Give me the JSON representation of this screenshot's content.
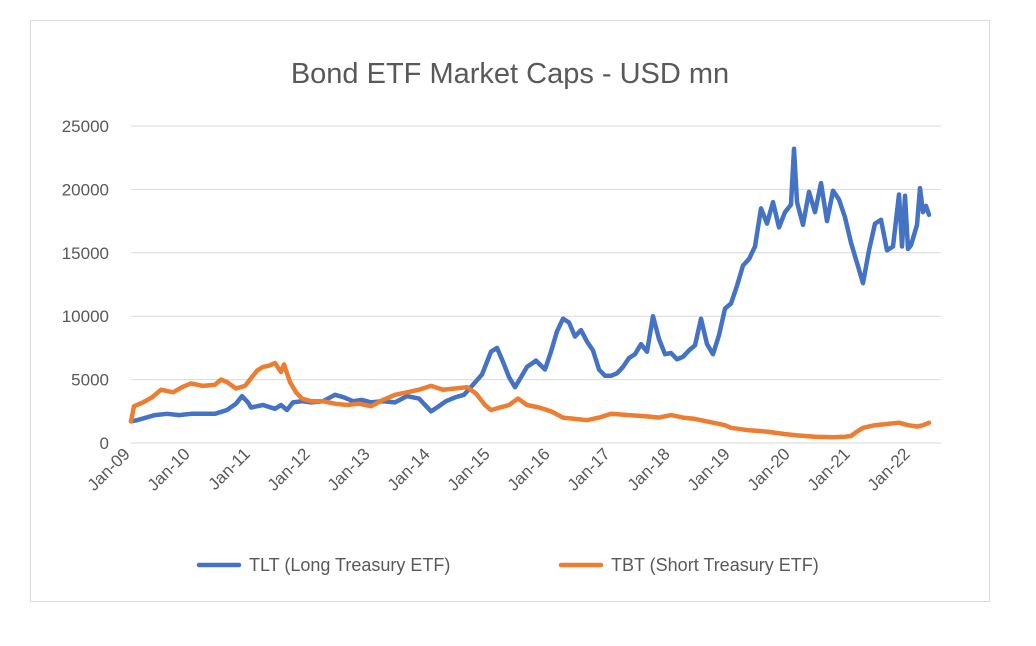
{
  "chart_data": {
    "type": "line",
    "title": "Bond ETF Market Caps - USD mn",
    "xlabel": "",
    "ylabel": "",
    "ylim": [
      0,
      25000
    ],
    "y_ticks": [
      0,
      5000,
      10000,
      15000,
      20000,
      25000
    ],
    "x_tick_labels": [
      "Jan-09",
      "Jan-10",
      "Jan-11",
      "Jan-12",
      "Jan-13",
      "Jan-14",
      "Jan-15",
      "Jan-16",
      "Jan-17",
      "Jan-18",
      "Jan-19",
      "Jan-20",
      "Jan-21",
      "Jan-22"
    ],
    "x_unit": "year (decimal)",
    "xlim": [
      2009.0,
      2022.5
    ],
    "grid": "horizontal",
    "legend_position": "bottom",
    "series": [
      {
        "name": "TLT (Long Treasury ETF)",
        "color": "#4472C4",
        "points": [
          [
            2009.0,
            1700
          ],
          [
            2009.1,
            1800
          ],
          [
            2009.25,
            2000
          ],
          [
            2009.4,
            2200
          ],
          [
            2009.6,
            2300
          ],
          [
            2009.8,
            2200
          ],
          [
            2010.0,
            2300
          ],
          [
            2010.2,
            2300
          ],
          [
            2010.4,
            2300
          ],
          [
            2010.6,
            2600
          ],
          [
            2010.75,
            3100
          ],
          [
            2010.85,
            3700
          ],
          [
            2010.95,
            3200
          ],
          [
            2011.0,
            2800
          ],
          [
            2011.2,
            3000
          ],
          [
            2011.4,
            2700
          ],
          [
            2011.5,
            3000
          ],
          [
            2011.6,
            2600
          ],
          [
            2011.7,
            3200
          ],
          [
            2011.85,
            3300
          ],
          [
            2012.0,
            3200
          ],
          [
            2012.2,
            3300
          ],
          [
            2012.4,
            3800
          ],
          [
            2012.55,
            3600
          ],
          [
            2012.7,
            3300
          ],
          [
            2012.85,
            3400
          ],
          [
            2013.0,
            3200
          ],
          [
            2013.2,
            3300
          ],
          [
            2013.4,
            3200
          ],
          [
            2013.6,
            3700
          ],
          [
            2013.8,
            3500
          ],
          [
            2014.0,
            2500
          ],
          [
            2014.1,
            2800
          ],
          [
            2014.25,
            3300
          ],
          [
            2014.4,
            3600
          ],
          [
            2014.55,
            3800
          ],
          [
            2014.7,
            4600
          ],
          [
            2014.85,
            5400
          ],
          [
            2015.0,
            7200
          ],
          [
            2015.1,
            7500
          ],
          [
            2015.2,
            6400
          ],
          [
            2015.3,
            5200
          ],
          [
            2015.4,
            4400
          ],
          [
            2015.5,
            5200
          ],
          [
            2015.6,
            6000
          ],
          [
            2015.75,
            6500
          ],
          [
            2015.9,
            5800
          ],
          [
            2016.0,
            7200
          ],
          [
            2016.1,
            8800
          ],
          [
            2016.2,
            9800
          ],
          [
            2016.3,
            9500
          ],
          [
            2016.4,
            8400
          ],
          [
            2016.5,
            8900
          ],
          [
            2016.6,
            8000
          ],
          [
            2016.7,
            7300
          ],
          [
            2016.8,
            5800
          ],
          [
            2016.9,
            5300
          ],
          [
            2017.0,
            5300
          ],
          [
            2017.1,
            5500
          ],
          [
            2017.2,
            6000
          ],
          [
            2017.3,
            6700
          ],
          [
            2017.4,
            7000
          ],
          [
            2017.5,
            7800
          ],
          [
            2017.6,
            7200
          ],
          [
            2017.7,
            10000
          ],
          [
            2017.8,
            8200
          ],
          [
            2017.9,
            7000
          ],
          [
            2018.0,
            7100
          ],
          [
            2018.1,
            6600
          ],
          [
            2018.2,
            6800
          ],
          [
            2018.3,
            7300
          ],
          [
            2018.4,
            7700
          ],
          [
            2018.5,
            9800
          ],
          [
            2018.6,
            7800
          ],
          [
            2018.7,
            7000
          ],
          [
            2018.8,
            8500
          ],
          [
            2018.9,
            10600
          ],
          [
            2019.0,
            11000
          ],
          [
            2019.1,
            12400
          ],
          [
            2019.2,
            14000
          ],
          [
            2019.3,
            14500
          ],
          [
            2019.4,
            15500
          ],
          [
            2019.5,
            18500
          ],
          [
            2019.6,
            17300
          ],
          [
            2019.7,
            19000
          ],
          [
            2019.8,
            17000
          ],
          [
            2019.9,
            18200
          ],
          [
            2020.0,
            18800
          ],
          [
            2020.05,
            23200
          ],
          [
            2020.1,
            19000
          ],
          [
            2020.2,
            17200
          ],
          [
            2020.3,
            19800
          ],
          [
            2020.4,
            18200
          ],
          [
            2020.5,
            20500
          ],
          [
            2020.6,
            17500
          ],
          [
            2020.7,
            19900
          ],
          [
            2020.8,
            19200
          ],
          [
            2020.9,
            17800
          ],
          [
            2021.0,
            15800
          ],
          [
            2021.1,
            14200
          ],
          [
            2021.2,
            12600
          ],
          [
            2021.3,
            15200
          ],
          [
            2021.4,
            17300
          ],
          [
            2021.5,
            17600
          ],
          [
            2021.6,
            15200
          ],
          [
            2021.7,
            15500
          ],
          [
            2021.8,
            19600
          ],
          [
            2021.85,
            15500
          ],
          [
            2021.9,
            19500
          ],
          [
            2021.95,
            15300
          ],
          [
            2022.0,
            15600
          ],
          [
            2022.1,
            17200
          ],
          [
            2022.15,
            20100
          ],
          [
            2022.2,
            18200
          ],
          [
            2022.25,
            18700
          ],
          [
            2022.3,
            18000
          ]
        ]
      },
      {
        "name": "TBT (Short Treasury ETF)",
        "color": "#ED7D31",
        "points": [
          [
            2009.0,
            1700
          ],
          [
            2009.05,
            2900
          ],
          [
            2009.2,
            3200
          ],
          [
            2009.35,
            3600
          ],
          [
            2009.5,
            4200
          ],
          [
            2009.7,
            4000
          ],
          [
            2009.85,
            4400
          ],
          [
            2010.0,
            4700
          ],
          [
            2010.2,
            4500
          ],
          [
            2010.4,
            4600
          ],
          [
            2010.5,
            5000
          ],
          [
            2010.6,
            4800
          ],
          [
            2010.75,
            4300
          ],
          [
            2010.9,
            4500
          ],
          [
            2011.0,
            5100
          ],
          [
            2011.1,
            5700
          ],
          [
            2011.2,
            6000
          ],
          [
            2011.3,
            6100
          ],
          [
            2011.4,
            6300
          ],
          [
            2011.5,
            5600
          ],
          [
            2011.55,
            6200
          ],
          [
            2011.65,
            4800
          ],
          [
            2011.75,
            4000
          ],
          [
            2011.85,
            3500
          ],
          [
            2012.0,
            3300
          ],
          [
            2012.2,
            3300
          ],
          [
            2012.4,
            3100
          ],
          [
            2012.6,
            3000
          ],
          [
            2012.8,
            3100
          ],
          [
            2013.0,
            2900
          ],
          [
            2013.2,
            3400
          ],
          [
            2013.4,
            3800
          ],
          [
            2013.6,
            4000
          ],
          [
            2013.8,
            4200
          ],
          [
            2014.0,
            4500
          ],
          [
            2014.2,
            4200
          ],
          [
            2014.4,
            4300
          ],
          [
            2014.6,
            4400
          ],
          [
            2014.75,
            3900
          ],
          [
            2014.9,
            3000
          ],
          [
            2015.0,
            2600
          ],
          [
            2015.15,
            2800
          ],
          [
            2015.3,
            3000
          ],
          [
            2015.45,
            3500
          ],
          [
            2015.6,
            3000
          ],
          [
            2015.8,
            2800
          ],
          [
            2016.0,
            2500
          ],
          [
            2016.2,
            2000
          ],
          [
            2016.4,
            1900
          ],
          [
            2016.6,
            1800
          ],
          [
            2016.8,
            2000
          ],
          [
            2017.0,
            2300
          ],
          [
            2017.3,
            2200
          ],
          [
            2017.6,
            2100
          ],
          [
            2017.8,
            2000
          ],
          [
            2018.0,
            2200
          ],
          [
            2018.2,
            2000
          ],
          [
            2018.4,
            1900
          ],
          [
            2018.7,
            1600
          ],
          [
            2018.9,
            1400
          ],
          [
            2019.0,
            1200
          ],
          [
            2019.3,
            1000
          ],
          [
            2019.6,
            900
          ],
          [
            2019.9,
            700
          ],
          [
            2020.1,
            600
          ],
          [
            2020.4,
            500
          ],
          [
            2020.7,
            450
          ],
          [
            2020.9,
            500
          ],
          [
            2021.0,
            550
          ],
          [
            2021.1,
            900
          ],
          [
            2021.2,
            1200
          ],
          [
            2021.4,
            1400
          ],
          [
            2021.6,
            1500
          ],
          [
            2021.8,
            1600
          ],
          [
            2021.95,
            1400
          ],
          [
            2022.1,
            1300
          ],
          [
            2022.2,
            1400
          ],
          [
            2022.3,
            1600
          ]
        ]
      }
    ]
  }
}
